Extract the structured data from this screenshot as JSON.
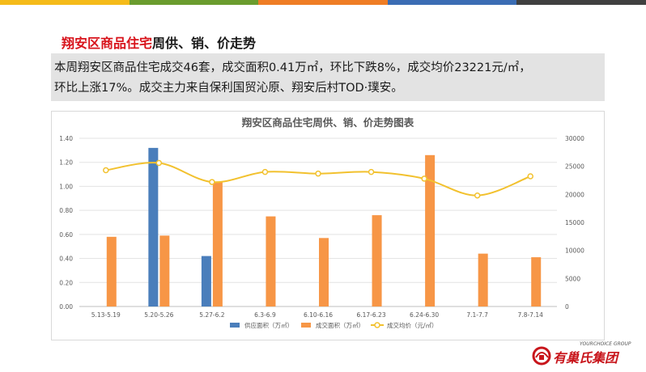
{
  "top_bar_colors": [
    "#f5bb1a",
    "#6b9c2e",
    "#ef7d25",
    "#3b6db4",
    "#404040"
  ],
  "heading": {
    "highlight": "翔安区商品住宅",
    "rest": "周供、销、价走势"
  },
  "summary": {
    "line1": "本周翔安区商品住宅成交46套，成交面积0.41万㎡，环比下跌8%，成交均价23221元/㎡，",
    "line2": "环比上涨17%。成交主力来自保利国贸沁原、翔安后村TOD·璞安。"
  },
  "logo": {
    "tagline": "YOURCHOICE GROUP",
    "name": "有巢氏集团",
    "brand_color": "#c8151b"
  },
  "chart_data": {
    "type": "bar",
    "title": "翔安区商品住宅周供、销、价走势图表",
    "categories": [
      "5.13-5.19",
      "5.20-5.26",
      "5.27-6.2",
      "6.3-6.9",
      "6.10-6.16",
      "6.17-6.23",
      "6.24-6.30",
      "7.1-7.7",
      "7.8-7.14"
    ],
    "series": [
      {
        "name": "供应面积（万㎡）",
        "type": "bar",
        "axis": "left",
        "color": "#4a7ebb",
        "values": [
          0,
          1.32,
          0.42,
          0,
          0,
          0,
          0,
          0,
          0
        ]
      },
      {
        "name": "成交面积（万㎡）",
        "type": "bar",
        "axis": "left",
        "color": "#f79646",
        "values": [
          0.58,
          0.59,
          1.04,
          0.75,
          0.57,
          0.76,
          1.26,
          0.44,
          0.41
        ]
      },
      {
        "name": "成交均价（元/㎡）",
        "type": "line",
        "axis": "right",
        "color": "#f2c12e",
        "values": [
          24300,
          25600,
          22200,
          24000,
          23700,
          24000,
          22800,
          19800,
          23221
        ]
      }
    ],
    "y_left": {
      "min": 0,
      "max": 1.4,
      "step": 0.2,
      "tick_labels": [
        "0.00",
        "0.20",
        "0.40",
        "0.60",
        "0.80",
        "1.00",
        "1.20",
        "1.40"
      ]
    },
    "y_right": {
      "min": 0,
      "max": 30000,
      "step": 5000,
      "tick_labels": [
        "0",
        "5000",
        "10000",
        "15000",
        "20000",
        "25000",
        "30000"
      ]
    },
    "grid": "horizontal",
    "legend_position": "bottom"
  }
}
